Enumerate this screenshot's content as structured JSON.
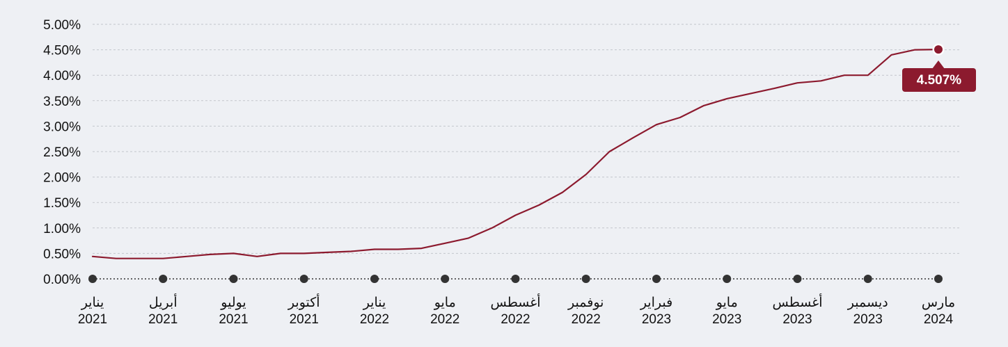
{
  "chart_data": {
    "type": "line",
    "y_axis": {
      "min": 0,
      "max": 5,
      "tick_values": [
        0,
        0.5,
        1,
        1.5,
        2,
        2.5,
        3,
        3.5,
        4,
        4.5,
        5
      ],
      "tick_labels": [
        "0.00%",
        "0.50%",
        "1.00%",
        "1.50%",
        "2.00%",
        "2.50%",
        "3.00%",
        "3.50%",
        "4.00%",
        "4.50%",
        "5.00%"
      ]
    },
    "x_axis": {
      "ticks": [
        {
          "month": "يناير",
          "year": "2021",
          "index": 0
        },
        {
          "month": "أبريل",
          "year": "2021",
          "index": 3
        },
        {
          "month": "يوليو",
          "year": "2021",
          "index": 6
        },
        {
          "month": "أكتوبر",
          "year": "2021",
          "index": 9
        },
        {
          "month": "يناير",
          "year": "2022",
          "index": 12
        },
        {
          "month": "مايو",
          "year": "2022",
          "index": 15
        },
        {
          "month": "أغسطس",
          "year": "2022",
          "index": 18
        },
        {
          "month": "نوفمبر",
          "year": "2022",
          "index": 21
        },
        {
          "month": "فبراير",
          "year": "2023",
          "index": 24
        },
        {
          "month": "مايو",
          "year": "2023",
          "index": 27
        },
        {
          "month": "أغسطس",
          "year": "2023",
          "index": 30
        },
        {
          "month": "ديسمبر",
          "year": "2023",
          "index": 33
        },
        {
          "month": "مارس",
          "year": "2024",
          "index": 36
        }
      ]
    },
    "series": [
      {
        "color": "#8c1a2e",
        "values": [
          0.44,
          0.4,
          0.4,
          0.4,
          0.44,
          0.48,
          0.5,
          0.44,
          0.5,
          0.5,
          0.52,
          0.54,
          0.58,
          0.58,
          0.6,
          0.7,
          0.8,
          1.0,
          1.25,
          1.45,
          1.7,
          2.05,
          2.5,
          2.77,
          3.03,
          3.17,
          3.4,
          3.54,
          3.64,
          3.74,
          3.85,
          3.89,
          4.0,
          4.0,
          4.4,
          4.5,
          4.507
        ]
      }
    ],
    "callout": {
      "label": "4.507%",
      "value": 4.507,
      "index": 36
    },
    "grid": true,
    "colors": {
      "line": "#8c1a2e",
      "grid": "#c3c6cc",
      "tick_dot": "#333333",
      "background": "#eef0f4"
    }
  }
}
